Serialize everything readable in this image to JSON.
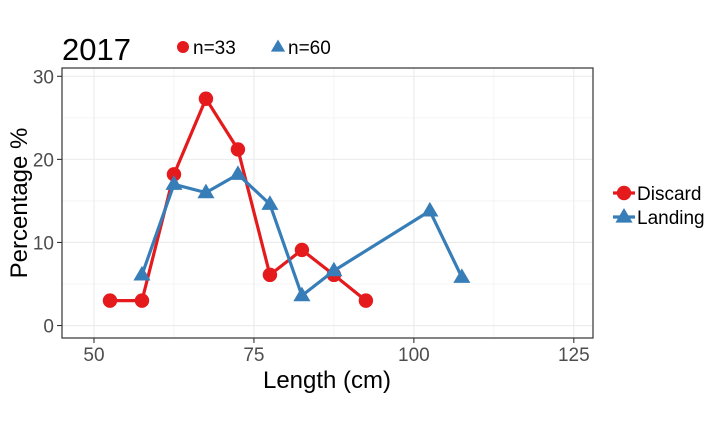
{
  "chart_data": {
    "type": "line",
    "title": "2017",
    "xlabel": "Length (cm)",
    "ylabel": "Percentage %",
    "xlim": [
      45,
      128
    ],
    "ylim": [
      -1.5,
      31
    ],
    "xticks": [
      50,
      75,
      100,
      125
    ],
    "yticks": [
      0,
      10,
      20,
      30
    ],
    "grid": true,
    "legend_position": "right",
    "annotations": [
      {
        "text": "n=33",
        "series": "Discard"
      },
      {
        "text": "n=60",
        "series": "Landing"
      }
    ],
    "series": [
      {
        "name": "Discard",
        "marker": "circle",
        "color": "#E41A1C",
        "x": [
          52.5,
          57.5,
          62.5,
          67.5,
          72.5,
          77.5,
          82.5,
          87.5,
          92.5
        ],
        "y": [
          3.0,
          3.0,
          18.2,
          27.3,
          21.2,
          6.1,
          9.1,
          6.1,
          3.0
        ]
      },
      {
        "name": "Landing",
        "marker": "triangle",
        "color": "#377EB8",
        "x": [
          57.5,
          62.5,
          67.5,
          72.5,
          77.5,
          82.5,
          87.5,
          102.5,
          107.5
        ],
        "y": [
          6.1,
          17.0,
          16.0,
          18.2,
          14.6,
          3.6,
          6.6,
          13.8,
          5.8
        ]
      }
    ]
  }
}
